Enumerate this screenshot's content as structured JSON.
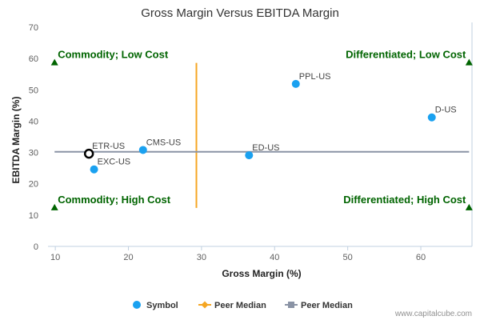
{
  "chart_data": {
    "type": "scatter",
    "title": "Gross Margin Versus EBITDA Margin",
    "xlabel": "Gross Margin (%)",
    "ylabel": "EBITDA Margin (%)",
    "xlim": [
      9,
      67
    ],
    "ylim": [
      0,
      70
    ],
    "x_ticks": [
      10,
      20,
      30,
      40,
      50,
      60
    ],
    "y_ticks": [
      0,
      10,
      20,
      30,
      40,
      50,
      60,
      70
    ],
    "points": [
      {
        "label": "PPL-US",
        "x": 42.9,
        "y": 51.9,
        "highlight": false
      },
      {
        "label": "D-US",
        "x": 61.5,
        "y": 41.2,
        "highlight": false
      },
      {
        "label": "ED-US",
        "x": 36.5,
        "y": 29.1,
        "highlight": false
      },
      {
        "label": "CMS-US",
        "x": 22.0,
        "y": 30.8,
        "highlight": false
      },
      {
        "label": "EXC-US",
        "x": 15.3,
        "y": 24.6,
        "highlight": false
      },
      {
        "label": "ETR-US",
        "x": 14.6,
        "y": 29.6,
        "highlight": true
      }
    ],
    "peer_median_x": 29.3,
    "peer_median_y": 30.2,
    "peer_median_x_range": [
      12.3,
      58.6
    ],
    "peer_median_y_range": [
      9.9,
      66.6
    ],
    "quadrants": [
      {
        "label": "Commodity; Low Cost",
        "x": 9.9,
        "y": 58.6,
        "anchor": "start"
      },
      {
        "label": "Differentiated; Low Cost",
        "x": 66.6,
        "y": 58.6,
        "anchor": "end"
      },
      {
        "label": "Commodity; High Cost",
        "x": 9.9,
        "y": 12.3,
        "anchor": "start"
      },
      {
        "label": "Differentiated; High Cost",
        "x": 66.6,
        "y": 12.3,
        "anchor": "end"
      }
    ],
    "legend": [
      {
        "label": "Symbol",
        "marker": "circle",
        "color": "#1aa1f0"
      },
      {
        "label": "Peer Median",
        "marker": "diamond",
        "color": "#f5a623"
      },
      {
        "label": "Peer Median",
        "marker": "square",
        "color": "#8a93a5"
      }
    ],
    "colors": {
      "point": "#1aa1f0",
      "highlight_stroke": "#000000",
      "median_vertical": "#f5a623",
      "median_horizontal": "#8a93a5",
      "quadrant_text": "#006400",
      "quadrant_marker": "#006400"
    },
    "grid": false,
    "legend_position": "bottom"
  },
  "footer": {
    "credit": "www.capitalcube.com"
  }
}
